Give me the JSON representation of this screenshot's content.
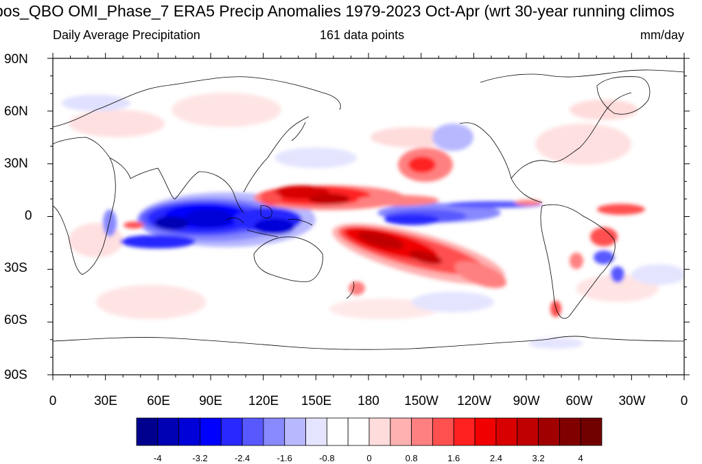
{
  "title": "bos_QBO OMI_Phase_7 ERA5 Precip Anomalies 1979-2023 Oct-Apr (wrt 30-year running climos",
  "subtitle_left": "Daily Average Precipitation",
  "subtitle_center": "161 data points",
  "subtitle_right": "mm/day",
  "lat_labels": [
    "90N",
    "60N",
    "30N",
    "0",
    "30S",
    "60S",
    "90S"
  ],
  "lon_labels": [
    "0",
    "30E",
    "60E",
    "90E",
    "120E",
    "150E",
    "180",
    "150W",
    "120W",
    "90W",
    "60W",
    "30W",
    "0"
  ],
  "colorbar": {
    "colors": [
      "#00008f",
      "#0000b4",
      "#0000d8",
      "#0000ff",
      "#2828ff",
      "#5858ff",
      "#8888ff",
      "#b8b8ff",
      "#e4e4ff",
      "#ffffff",
      "#ffffff",
      "#ffdcdc",
      "#ffb0b0",
      "#ff8080",
      "#ff5050",
      "#ff2020",
      "#f00000",
      "#d80000",
      "#c00000",
      "#a00000",
      "#800000",
      "#700000"
    ],
    "labels": [
      "-4",
      "-3.2",
      "-2.4",
      "-1.6",
      "-0.8",
      "0",
      "0.8",
      "1.6",
      "2.4",
      "3.2",
      "4"
    ]
  }
}
